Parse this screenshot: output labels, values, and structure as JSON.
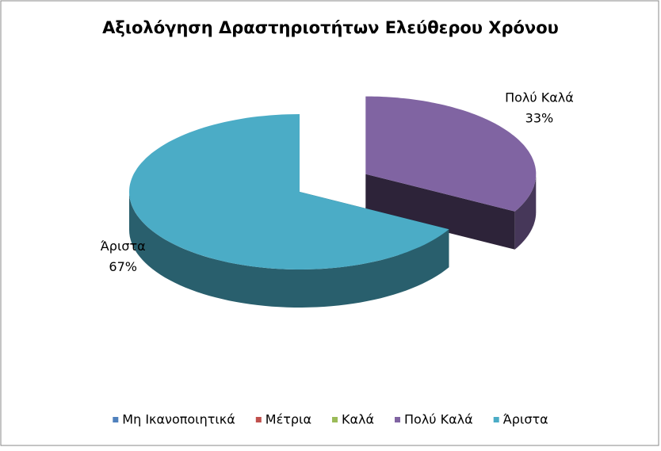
{
  "chart_data": {
    "type": "pie3d",
    "title": "Αξιολόγηση Δραστηριοτήτων Ελεύθερου Χρόνου",
    "categories": [
      "Μη Ικανοποιητικά",
      "Μέτρια",
      "Καλά",
      "Πολύ Καλά",
      "Άριστα"
    ],
    "values": [
      0,
      0,
      0,
      33,
      67
    ],
    "value_labels": [
      null,
      null,
      null,
      "33%",
      "67%"
    ],
    "colors": [
      "#4f81bd",
      "#c0504d",
      "#9bbb59",
      "#8064a2",
      "#4bacc6"
    ],
    "exploded": [
      false,
      false,
      false,
      true,
      false
    ],
    "legend": "bottom"
  }
}
